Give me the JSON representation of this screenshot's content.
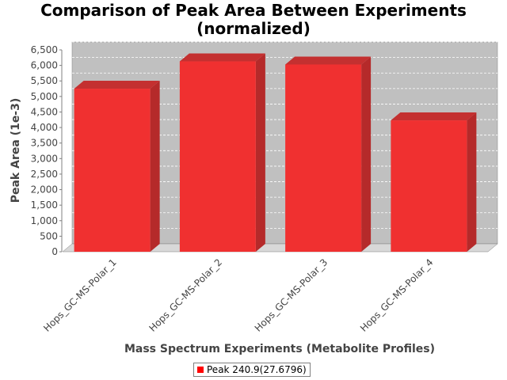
{
  "chart_data": {
    "type": "bar",
    "title": "Comparison of Peak Area Between Experiments",
    "subtitle": "(normalized)",
    "xlabel": "Mass Spectrum Experiments (Metabolite Profiles)",
    "ylabel": "Peak Area (1e-3)",
    "categories": [
      "Hops_GC-MS-Polar_1",
      "Hops_GC-MS-Polar_2",
      "Hops_GC-MS-Polar_3",
      "Hops_GC-MS-Polar_4"
    ],
    "series": [
      {
        "name": "Peak 240.9(27.6796)",
        "values": [
          5250,
          6130,
          6030,
          4230
        ]
      }
    ],
    "ylim": [
      0,
      6500
    ],
    "yticks": [
      0,
      500,
      1000,
      1500,
      2000,
      2500,
      3000,
      3500,
      4000,
      4500,
      5000,
      5500,
      6000,
      6500
    ],
    "ytick_labels": [
      "0",
      "500",
      "1,000",
      "1,500",
      "2,000",
      "2,500",
      "3,000",
      "3,500",
      "4,000",
      "4,500",
      "5,000",
      "5,500",
      "6,000",
      "6,500"
    ],
    "grid": true,
    "legend_position": "bottom",
    "colors": {
      "bar_front": "#f03030",
      "bar_side": "#b52a2a",
      "bar_top": "#c43030",
      "plot_back": "#c0c0c0",
      "plot_floor": "#d8d8d8",
      "gridline": "#ffffff",
      "legend_swatch": "#ff0000"
    }
  }
}
